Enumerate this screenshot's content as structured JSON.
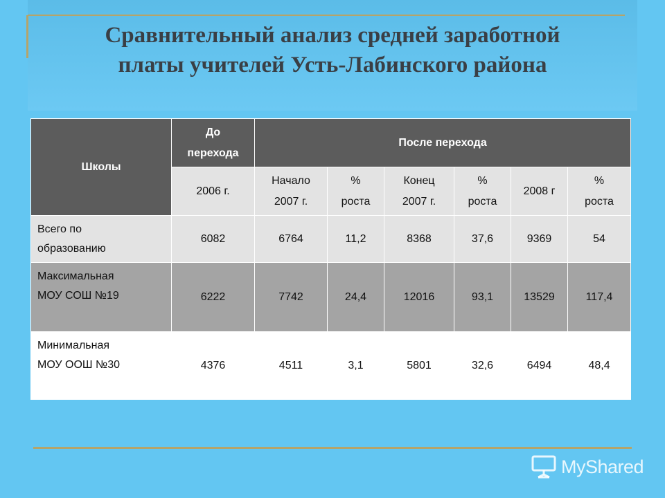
{
  "title": {
    "line1": "Сравнительный анализ средней заработной",
    "line2": "платы учителей Усть-Лабинского  района"
  },
  "table": {
    "headers": {
      "schools": "Школы",
      "before_line1": "До",
      "before_line2": "перехода",
      "after": "После перехода"
    },
    "subheaders": [
      {
        "l1": "2006 г.",
        "l2": ""
      },
      {
        "l1": "Начало",
        "l2": "2007 г."
      },
      {
        "l1": "%",
        "l2": "роста"
      },
      {
        "l1": "Конец",
        "l2": "2007 г."
      },
      {
        "l1": "%",
        "l2": "роста"
      },
      {
        "l1": "2008 г",
        "l2": ""
      },
      {
        "l1": "%",
        "l2": "роста"
      }
    ],
    "rows": [
      {
        "name_l1": "Всего по",
        "name_l2": "образованию",
        "values": [
          "6082",
          "6764",
          "11,2",
          "8368",
          "37,6",
          "9369",
          "54"
        ]
      },
      {
        "name_l1": "Максимальная",
        "name_l2": "МОУ СОШ №19",
        "values": [
          "6222",
          "7742",
          "24,4",
          "12016",
          "93,1",
          "13529",
          "117,4"
        ]
      },
      {
        "name_l1": "Минимальная",
        "name_l2": "МОУ ООШ №30",
        "values": [
          "4376",
          "4511",
          "3,1",
          "5801",
          "32,6",
          "6494",
          "48,4"
        ]
      }
    ]
  },
  "watermark": {
    "text": "MyShared",
    "icon": "presentation-screen-icon"
  },
  "colors": {
    "background": "#63c6f2",
    "header_dark": "#5c5c5c",
    "row_light": "#e3e3e3",
    "row_dark": "#a4a4a4",
    "accent_line": "#b5a46a"
  }
}
